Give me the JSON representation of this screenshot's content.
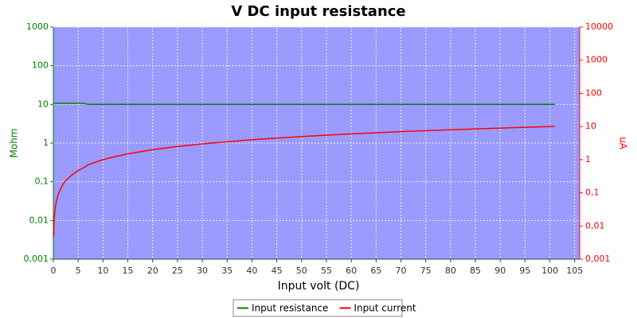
{
  "chart_data": {
    "type": "line",
    "title": "V DC input resistance",
    "x_label": "Input volt (DC)",
    "y_label": "Mohm",
    "y2_label": "uA",
    "x": [
      0.05,
      0.2,
      0.5,
      1,
      2,
      3,
      4,
      5,
      6,
      7,
      8,
      10,
      12,
      15,
      20,
      25,
      30,
      40,
      50,
      60,
      70,
      80,
      90,
      101
    ],
    "series": [
      {
        "name": "Input resistance",
        "color": "#008000",
        "axis": "y",
        "values": [
          10.7,
          10.7,
          10.7,
          10.7,
          10.7,
          10.7,
          10.7,
          10.7,
          10.7,
          10,
          10,
          10,
          10,
          10,
          10,
          10,
          10,
          10,
          10,
          10,
          10,
          10,
          10,
          10
        ]
      },
      {
        "name": "Input current",
        "color": "#ff0000",
        "axis": "y2",
        "values": [
          0.0047,
          0.019,
          0.047,
          0.093,
          0.19,
          0.28,
          0.37,
          0.47,
          0.56,
          0.7,
          0.8,
          1,
          1.2,
          1.5,
          2,
          2.5,
          3,
          4,
          5,
          6,
          7,
          8,
          9,
          10.1
        ]
      }
    ],
    "xlim": [
      0,
      106
    ],
    "xticks": [
      0,
      5,
      10,
      15,
      20,
      25,
      30,
      35,
      40,
      45,
      50,
      55,
      60,
      65,
      70,
      75,
      80,
      85,
      90,
      95,
      100,
      105
    ],
    "ylim": [
      0.001,
      1000
    ],
    "y_log": true,
    "yticks": [
      {
        "value": 0.001,
        "label": "0,001"
      },
      {
        "value": 0.01,
        "label": "0,01"
      },
      {
        "value": 0.1,
        "label": "0,1"
      },
      1,
      10,
      100,
      1000
    ],
    "y2lim": [
      0.001,
      10000
    ],
    "y2_log": true,
    "y2ticks": [
      {
        "value": 0.001,
        "label": "0,001"
      },
      {
        "value": 0.01,
        "label": "0,01"
      },
      {
        "value": 0.1,
        "label": "0,1"
      },
      1,
      10,
      100,
      1000,
      10000
    ],
    "grid": true,
    "legend": "bottom"
  }
}
